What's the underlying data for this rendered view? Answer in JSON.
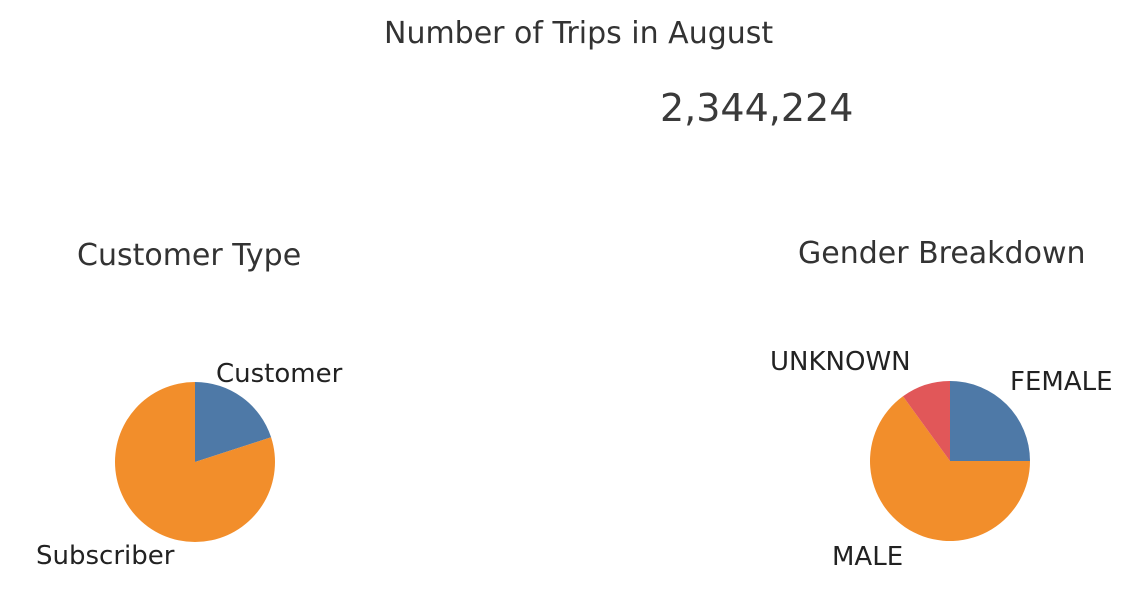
{
  "dashboard": {
    "title": "Number of Trips in August",
    "kpi_value": "2,344,224"
  },
  "chart_data": [
    {
      "type": "pie",
      "title": "Customer Type",
      "slices": [
        {
          "label": "Customer",
          "value": 20,
          "color": "#4e79a7"
        },
        {
          "label": "Subscriber",
          "value": 80,
          "color": "#f28e2b"
        }
      ]
    },
    {
      "type": "pie",
      "title": "Gender Breakdown",
      "slices": [
        {
          "label": "FEMALE",
          "value": 25,
          "color": "#4e79a7"
        },
        {
          "label": "MALE",
          "value": 65,
          "color": "#f28e2b"
        },
        {
          "label": "UNKNOWN",
          "value": 10,
          "color": "#e15759"
        }
      ]
    }
  ]
}
